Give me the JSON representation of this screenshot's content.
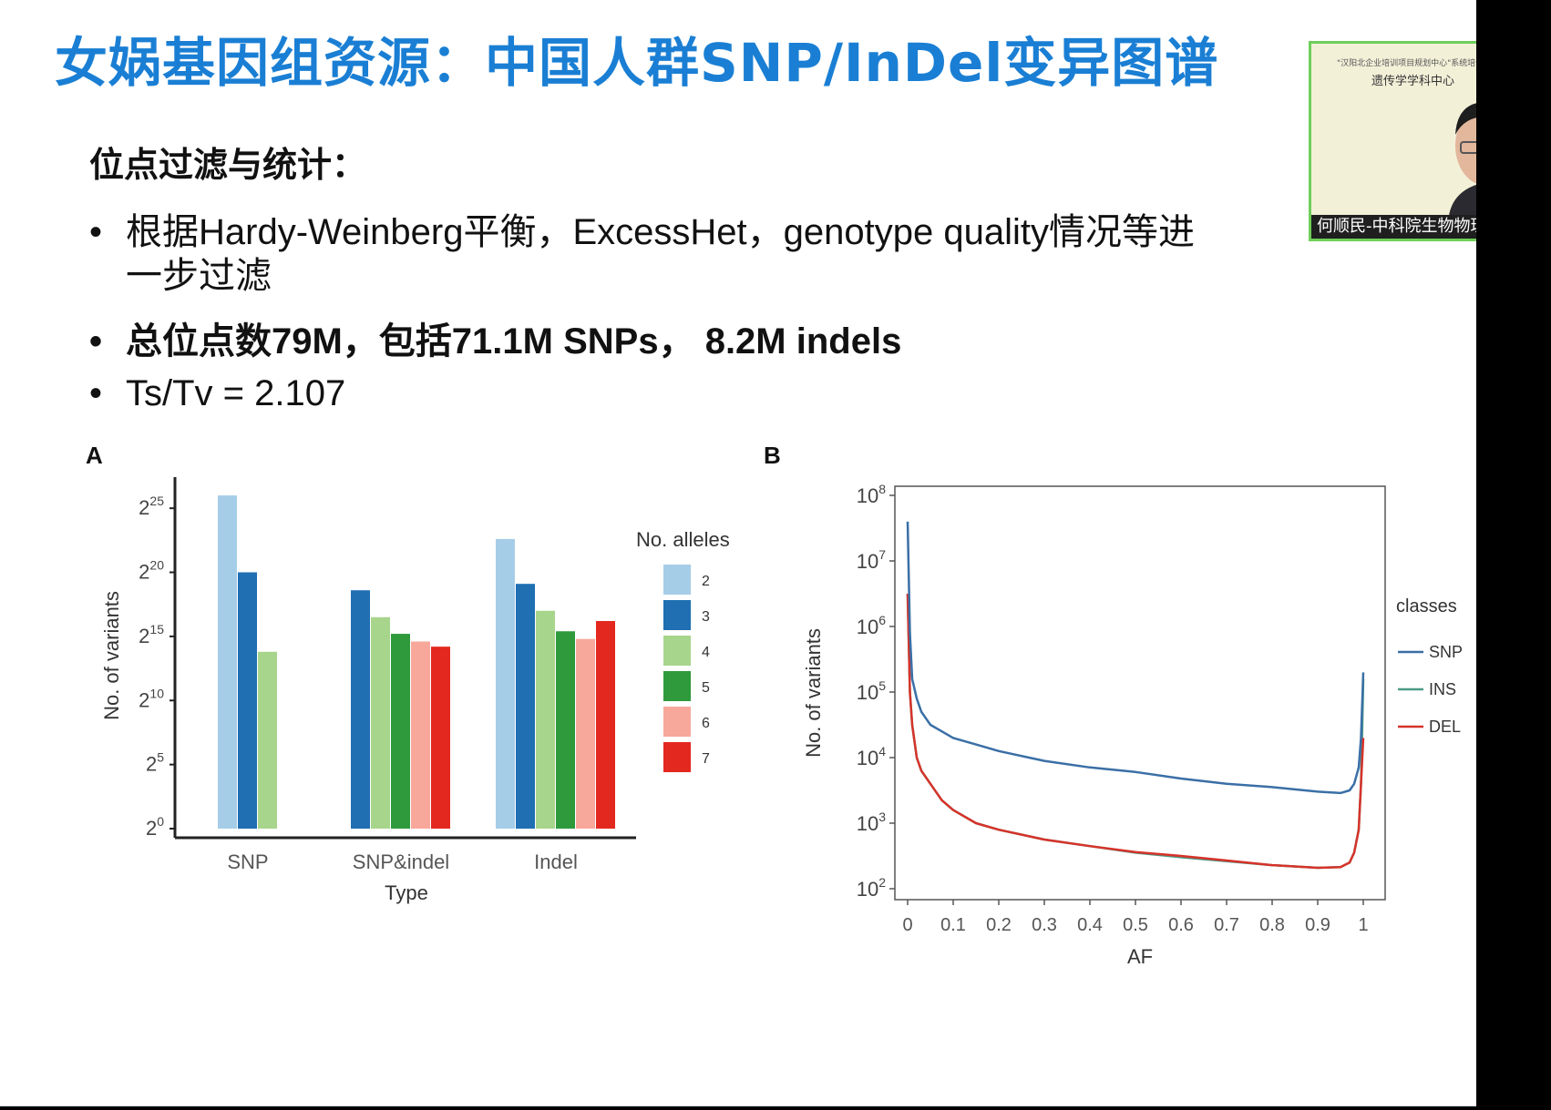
{
  "slide": {
    "title": "女娲基因组资源：中国人群SNP/InDel变异图谱",
    "heading": "位点过滤与统计：",
    "bullets": [
      "根据Hardy-Weinberg平衡，ExcessHet，genotype quality情况等进",
      "总位点数79M，包括71.1M SNPs， 8.2M indels",
      "Ts/Tv = 2.107"
    ],
    "bullet1_continuation": "一步过滤",
    "bullet_symbol": "•",
    "title_color": "#1a7fd4"
  },
  "webcam": {
    "banner_line1": "\"汉阳北企业培训项目规划中心\"系统培训",
    "banner_line2": "遗传学学科中心",
    "caption": "何顺民-中科院生物物理所"
  },
  "chart_data": [
    {
      "panel": "A",
      "type": "bar",
      "xlabel": "Type",
      "ylabel": "No. of variants",
      "y_scale": "log2",
      "y_tick_base": "2",
      "y_tick_exponents": [
        "0",
        "5",
        "10",
        "15",
        "20",
        "25"
      ],
      "ylim_exponent": [
        0,
        27
      ],
      "categories": [
        "SNP",
        "SNP&indel",
        "Indel"
      ],
      "legend_title": "No. alleles",
      "legend_position": "right",
      "series": [
        {
          "name": "2",
          "color": "#a6cde8",
          "values_log2": [
            26.0,
            null,
            22.6
          ]
        },
        {
          "name": "3",
          "color": "#1f6fb2",
          "values_log2": [
            20.0,
            18.6,
            19.1
          ]
        },
        {
          "name": "4",
          "color": "#a8d58c",
          "values_log2": [
            13.8,
            16.5,
            17.0
          ]
        },
        {
          "name": "5",
          "color": "#2e9a3c",
          "values_log2": [
            null,
            15.2,
            15.4
          ]
        },
        {
          "name": "6",
          "color": "#f7a89b",
          "values_log2": [
            null,
            14.6,
            14.8
          ]
        },
        {
          "name": "7",
          "color": "#e3281f",
          "values_log2": [
            null,
            14.2,
            16.2
          ]
        }
      ]
    },
    {
      "panel": "B",
      "type": "line",
      "xlabel": "AF",
      "ylabel": "No. of variants",
      "y_scale": "log10",
      "y_tick_base": "10",
      "y_tick_exponents": [
        "2",
        "3",
        "4",
        "5",
        "6",
        "7",
        "8"
      ],
      "ylim_exponent": [
        2,
        8
      ],
      "x_ticks": [
        "0",
        "0.1",
        "0.2",
        "0.3",
        "0.4",
        "0.5",
        "0.6",
        "0.7",
        "0.8",
        "0.9",
        "1"
      ],
      "xlim": [
        0,
        1
      ],
      "legend_title": "classes",
      "legend_position": "right",
      "x": [
        0,
        0.005,
        0.01,
        0.02,
        0.03,
        0.05,
        0.075,
        0.1,
        0.15,
        0.2,
        0.3,
        0.4,
        0.5,
        0.6,
        0.7,
        0.8,
        0.9,
        0.95,
        0.97,
        0.98,
        0.99,
        0.995,
        1
      ],
      "series": [
        {
          "name": "SNP",
          "color": "#3a6fa6",
          "values_log10": [
            7.6,
            5.9,
            5.2,
            4.9,
            4.7,
            4.5,
            4.4,
            4.3,
            4.2,
            4.1,
            3.95,
            3.85,
            3.78,
            3.68,
            3.6,
            3.55,
            3.48,
            3.46,
            3.5,
            3.6,
            3.85,
            4.3,
            5.3
          ]
        },
        {
          "name": "INS",
          "color": "#4a9a86",
          "values_log10": [
            6.5,
            5.0,
            4.5,
            4.0,
            3.8,
            3.6,
            3.35,
            3.2,
            3.0,
            2.9,
            2.75,
            2.65,
            2.55,
            2.48,
            2.42,
            2.36,
            2.32,
            2.33,
            2.4,
            2.55,
            2.9,
            3.6,
            5.2
          ]
        },
        {
          "name": "DEL",
          "color": "#d6332a",
          "values_log10": [
            6.5,
            5.0,
            4.5,
            4.0,
            3.8,
            3.6,
            3.35,
            3.2,
            3.0,
            2.9,
            2.75,
            2.65,
            2.56,
            2.5,
            2.43,
            2.36,
            2.32,
            2.33,
            2.4,
            2.55,
            2.9,
            3.6,
            4.3
          ]
        }
      ]
    }
  ]
}
